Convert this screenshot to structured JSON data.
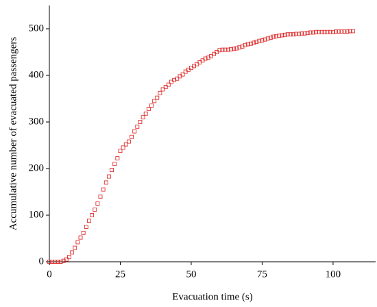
{
  "chart_data": {
    "type": "scatter",
    "xlabel": "Evacuation time (s)",
    "ylabel": "Accumulative number of evacuated passengers",
    "xlim": [
      0,
      115
    ],
    "ylim": [
      0,
      550
    ],
    "xticks": [
      0,
      25,
      50,
      75,
      100
    ],
    "yticks": [
      0,
      100,
      200,
      300,
      400,
      500
    ],
    "color": "#e03030",
    "x": [
      0,
      1,
      2,
      3,
      4,
      5,
      6,
      7,
      8,
      9,
      10,
      11,
      12,
      13,
      14,
      15,
      16,
      17,
      18,
      19,
      20,
      21,
      22,
      23,
      24,
      25,
      26,
      27,
      28,
      29,
      30,
      31,
      32,
      33,
      34,
      35,
      36,
      37,
      38,
      39,
      40,
      41,
      42,
      43,
      44,
      45,
      46,
      47,
      48,
      49,
      50,
      51,
      52,
      53,
      54,
      55,
      56,
      57,
      58,
      59,
      60,
      61,
      62,
      63,
      64,
      65,
      66,
      67,
      68,
      69,
      70,
      71,
      72,
      73,
      74,
      75,
      76,
      77,
      78,
      79,
      80,
      81,
      82,
      83,
      84,
      85,
      86,
      87,
      88,
      89,
      90,
      91,
      92,
      93,
      94,
      95,
      96,
      97,
      98,
      99,
      100,
      101,
      102,
      103,
      104,
      105,
      106,
      107
    ],
    "values": [
      0,
      0,
      0,
      0,
      0,
      2,
      5,
      10,
      20,
      30,
      42,
      52,
      62,
      75,
      88,
      100,
      112,
      125,
      140,
      155,
      170,
      183,
      197,
      210,
      222,
      238,
      245,
      252,
      258,
      268,
      280,
      290,
      300,
      310,
      318,
      328,
      335,
      345,
      352,
      362,
      370,
      375,
      380,
      386,
      390,
      393,
      398,
      402,
      408,
      412,
      416,
      420,
      424,
      428,
      432,
      436,
      438,
      441,
      446,
      450,
      454,
      455,
      455,
      455,
      456,
      457,
      458,
      460,
      462,
      465,
      467,
      468,
      470,
      472,
      474,
      475,
      477,
      479,
      481,
      483,
      484,
      485,
      486,
      487,
      488,
      488,
      488,
      489,
      489,
      490,
      490,
      491,
      492,
      492,
      493,
      493,
      493,
      493,
      493,
      493,
      493,
      494,
      494,
      494,
      494,
      494,
      495,
      495
    ]
  }
}
